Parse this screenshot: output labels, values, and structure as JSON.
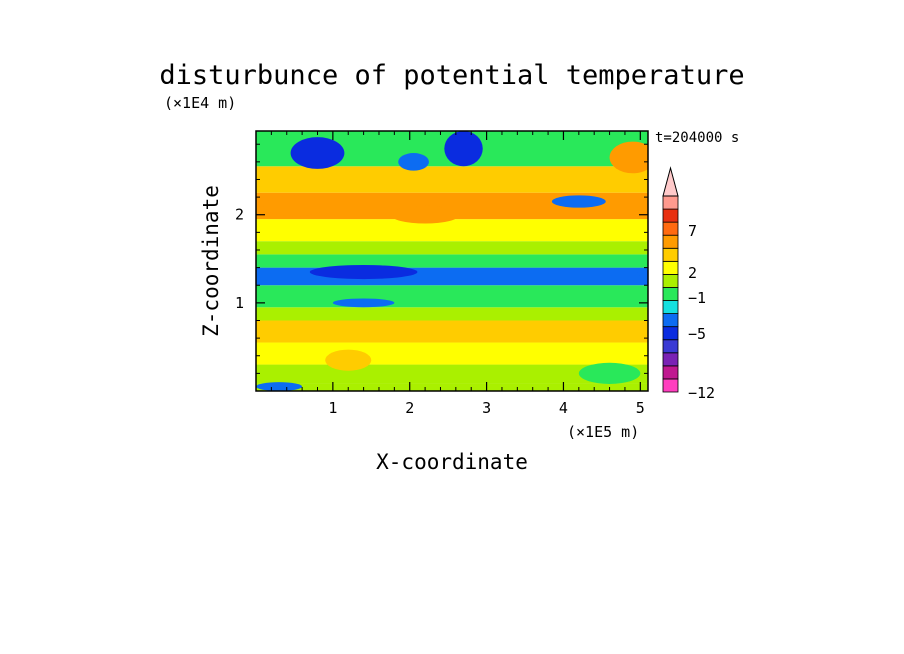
{
  "chart_data": {
    "type": "heatmap",
    "title": "disturbunce of potential temperature",
    "xlabel": "X-coordinate",
    "ylabel": "Z-coordinate",
    "x_unit": "(×1E5 m)",
    "y_unit": "(×1E4 m)",
    "annotation": "t=204000 s",
    "xlim": [
      0,
      5.1
    ],
    "ylim": [
      0,
      2.95
    ],
    "x_ticks": [
      "1",
      "2",
      "3",
      "4",
      "5"
    ],
    "y_ticks": [
      "1",
      "2"
    ],
    "colorbar": {
      "ticks": [
        "7",
        "2",
        "−1",
        "−5",
        "−12"
      ],
      "levels": [
        {
          "upper": -12,
          "color": "#ff3fbf"
        },
        {
          "upper": -9,
          "color": "#c01890"
        },
        {
          "upper": -7,
          "color": "#7a22b4"
        },
        {
          "upper": -5,
          "color": "#3a3ad4"
        },
        {
          "upper": -3,
          "color": "#0a2ce0"
        },
        {
          "upper": -2,
          "color": "#0c6cf2"
        },
        {
          "upper": -1,
          "color": "#15e0e0"
        },
        {
          "upper": 0,
          "color": "#29e85a"
        },
        {
          "upper": 1,
          "color": "#aaf000"
        },
        {
          "upper": 2,
          "color": "#ffff00"
        },
        {
          "upper": 3,
          "color": "#ffcc00"
        },
        {
          "upper": 5,
          "color": "#ff9b00"
        },
        {
          "upper": 7,
          "color": "#ff6a10"
        },
        {
          "upper": 9,
          "color": "#e83010"
        },
        {
          "upper": 12,
          "color": "#ff9a8e"
        },
        {
          "upper": 99,
          "color": "#ffcaca"
        }
      ]
    },
    "field_bands": [
      {
        "z_from": 0.0,
        "z_to": 0.08,
        "value": 0.0
      },
      {
        "z_from": 0.08,
        "z_to": 0.3,
        "value": 0.6
      },
      {
        "z_from": 0.3,
        "z_to": 0.55,
        "value": 1.6
      },
      {
        "z_from": 0.55,
        "z_to": 0.8,
        "value": 2.3
      },
      {
        "z_from": 0.8,
        "z_to": 0.95,
        "value": 0.4
      },
      {
        "z_from": 0.95,
        "z_to": 1.2,
        "value": -0.6
      },
      {
        "z_from": 1.2,
        "z_to": 1.4,
        "value": -2.6
      },
      {
        "z_from": 1.4,
        "z_to": 1.55,
        "value": -0.4
      },
      {
        "z_from": 1.55,
        "z_to": 1.7,
        "value": 0.7
      },
      {
        "z_from": 1.7,
        "z_to": 1.95,
        "value": 1.8
      },
      {
        "z_from": 1.95,
        "z_to": 2.25,
        "value": 4.0
      },
      {
        "z_from": 2.25,
        "z_to": 2.55,
        "value": 2.5
      },
      {
        "z_from": 2.55,
        "z_to": 2.95,
        "value": -0.8
      }
    ],
    "blobs": [
      {
        "x": 0.8,
        "z": 2.7,
        "rx": 0.35,
        "rz": 0.18,
        "value": -3.5
      },
      {
        "x": 2.7,
        "z": 2.75,
        "rx": 0.25,
        "rz": 0.2,
        "value": -3.5
      },
      {
        "x": 2.05,
        "z": 2.6,
        "rx": 0.2,
        "rz": 0.1,
        "value": -2.5
      },
      {
        "x": 4.2,
        "z": 2.15,
        "rx": 0.35,
        "rz": 0.07,
        "value": -2.5
      },
      {
        "x": 4.9,
        "z": 2.65,
        "rx": 0.3,
        "rz": 0.18,
        "value": 4.0
      },
      {
        "x": 0.5,
        "z": 2.1,
        "rx": 0.4,
        "rz": 0.12,
        "value": 4.5
      },
      {
        "x": 2.2,
        "z": 2.0,
        "rx": 0.45,
        "rz": 0.1,
        "value": 4.5
      },
      {
        "x": 1.4,
        "z": 1.35,
        "rx": 0.7,
        "rz": 0.08,
        "value": -4.0
      },
      {
        "x": 1.4,
        "z": 1.0,
        "rx": 0.4,
        "rz": 0.05,
        "value": -3.0
      },
      {
        "x": 4.4,
        "z": 1.32,
        "rx": 0.6,
        "rz": 0.07,
        "value": -3.0
      },
      {
        "x": 1.2,
        "z": 0.35,
        "rx": 0.3,
        "rz": 0.12,
        "value": 2.6
      },
      {
        "x": 0.3,
        "z": 0.05,
        "rx": 0.3,
        "rz": 0.05,
        "value": -2.5
      },
      {
        "x": 4.6,
        "z": 0.2,
        "rx": 0.4,
        "rz": 0.12,
        "value": -0.6
      }
    ]
  }
}
